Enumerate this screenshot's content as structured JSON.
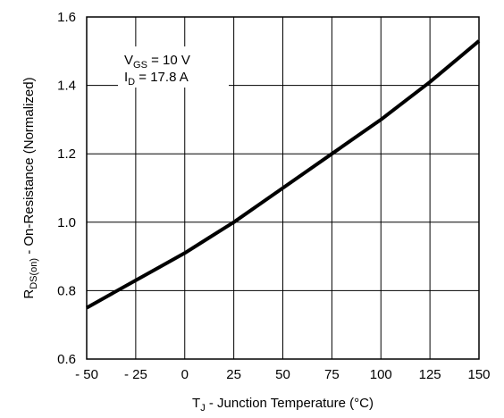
{
  "chart_data": {
    "type": "line",
    "xlabel": {
      "main": "T",
      "sub": "J",
      "rest": " - Junction Temperature (°C)"
    },
    "ylabel": {
      "main": "R",
      "sub": "DS(on)",
      "rest": " - On-Resistance (Normalized)"
    },
    "xlim": [
      -50,
      150
    ],
    "ylim": [
      0.6,
      1.6
    ],
    "x_ticks": [
      -50,
      -25,
      0,
      25,
      50,
      75,
      100,
      125,
      150
    ],
    "y_ticks": [
      0.6,
      0.8,
      1.0,
      1.2,
      1.4,
      1.6
    ],
    "x_tick_labels": [
      "- 50",
      "- 25",
      "0",
      "25",
      "50",
      "75",
      "100",
      "125",
      "150"
    ],
    "y_tick_labels": [
      "0.6",
      "0.8",
      "1.0",
      "1.2",
      "1.4",
      "1.6"
    ],
    "grid": true,
    "annotations": [
      {
        "main": "V",
        "sub": "GS",
        "rest": " = 10 V"
      },
      {
        "main": "I",
        "sub": "D",
        "rest": " = 17.8 A"
      }
    ],
    "series": [
      {
        "x": [
          -50,
          -37.5,
          -25,
          -12.5,
          0,
          12.5,
          25,
          37.5,
          50,
          62.5,
          75,
          87.5,
          100,
          112.5,
          125,
          137.5,
          150
        ],
        "y": [
          0.75,
          0.79,
          0.83,
          0.87,
          0.91,
          0.955,
          1.0,
          1.05,
          1.1,
          1.15,
          1.2,
          1.25,
          1.3,
          1.355,
          1.41,
          1.47,
          1.53
        ],
        "color": "#000000"
      }
    ]
  }
}
